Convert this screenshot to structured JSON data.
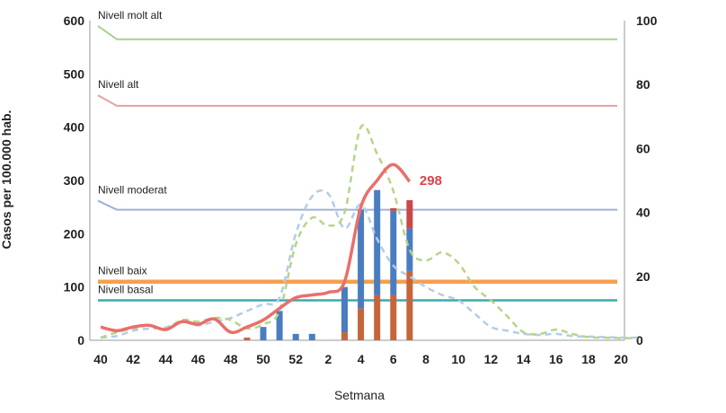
{
  "chart_data": {
    "type": "bar",
    "title": "",
    "xlabel": "Setmana",
    "ylabel": "Casos per 100.000 hab.",
    "ylim": [
      0,
      600
    ],
    "y2lim": [
      0,
      100
    ],
    "y_ticks": [
      "0",
      "100",
      "200",
      "300",
      "400",
      "500",
      "600"
    ],
    "y2_ticks": [
      "0",
      "20",
      "40",
      "60",
      "80",
      "100"
    ],
    "x_tick_labels": [
      "40",
      "42",
      "44",
      "46",
      "48",
      "50",
      "52",
      "2",
      "4",
      "6",
      "8",
      "10",
      "12",
      "14",
      "16",
      "18",
      "20"
    ],
    "weeks": [
      "40",
      "41",
      "42",
      "43",
      "44",
      "45",
      "46",
      "47",
      "48",
      "49",
      "50",
      "51",
      "52",
      "53",
      "1",
      "2",
      "3",
      "4",
      "5",
      "6",
      "7",
      "8",
      "9",
      "10",
      "11",
      "12",
      "13",
      "14",
      "15",
      "16",
      "17",
      "18",
      "19",
      "20"
    ],
    "grid": false,
    "legend": "none",
    "threshold_lines": [
      {
        "name": "Nivell molt alt",
        "start": 590,
        "value": 565,
        "color": "#a8d08d"
      },
      {
        "name": "Nivell alt",
        "start": 460,
        "value": 440,
        "color": "#e6a0a0"
      },
      {
        "name": "Nivell moderat",
        "start": 262,
        "value": 245,
        "color": "#9fb0d8"
      },
      {
        "name": "Nivell baix",
        "start": 110,
        "value": 110,
        "color": "#f4a04b"
      },
      {
        "name": "Nivell basal",
        "start": 75,
        "value": 75,
        "color": "#3aaab0"
      }
    ],
    "bar_series": [
      {
        "color": "#c5653a",
        "values": {
          "49": 5,
          "2": 15,
          "3": 60,
          "4": 85,
          "5": 85,
          "6": 130
        }
      },
      {
        "color": "#4a7cc0",
        "values": {
          "50": 25,
          "51": 55,
          "52": 12,
          "53": 12,
          "2": 85,
          "3": 185,
          "4": 197,
          "5": 158,
          "6": 80
        }
      },
      {
        "color": "#c94848",
        "values": {
          "5": 5,
          "6": 53
        }
      }
    ],
    "rate_series": {
      "color": "#e96f6b",
      "values": [
        25,
        18,
        25,
        28,
        20,
        35,
        30,
        40,
        15,
        25,
        38,
        60,
        80,
        85,
        90,
        110,
        250,
        300,
        330,
        298
      ],
      "end_label": "298"
    },
    "dashed_series": [
      {
        "color": "#b3cde8",
        "values": [
          5,
          8,
          18,
          22,
          24,
          35,
          28,
          35,
          42,
          55,
          68,
          80,
          200,
          270,
          275,
          210,
          255,
          190,
          140,
          120,
          100,
          85,
          75,
          50,
          25,
          18,
          12,
          10,
          12,
          8,
          7,
          6,
          5,
          5
        ]
      },
      {
        "color": "#b7d48a",
        "values": [
          5,
          15,
          22,
          28,
          22,
          38,
          35,
          42,
          38,
          22,
          30,
          55,
          180,
          230,
          215,
          240,
          400,
          350,
          280,
          170,
          150,
          165,
          145,
          100,
          75,
          45,
          15,
          12,
          20,
          12,
          6,
          5,
          4,
          4
        ]
      }
    ]
  }
}
